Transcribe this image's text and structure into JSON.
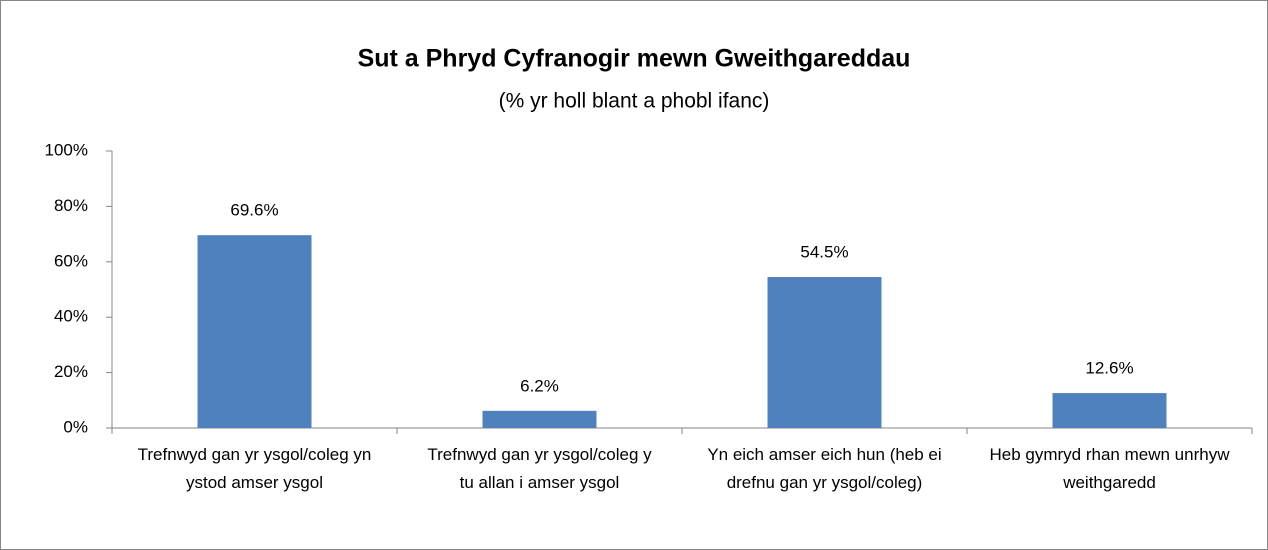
{
  "chart_data": {
    "type": "bar",
    "title": "Sut a Phryd Cyfranogir mewn Gweithgareddau",
    "subtitle": "(% yr holl blant a phobl ifanc)",
    "categories": [
      "Trefnwyd gan yr ysgol/coleg yn ystod amser ysgol",
      "Trefnwyd gan yr ysgol/coleg y tu allan i amser ysgol",
      "Yn eich amser eich hun (heb ei drefnu gan yr ysgol/coleg)",
      "Heb gymryd rhan mewn unrhyw weithgaredd"
    ],
    "values": [
      69.6,
      6.2,
      54.5,
      12.6
    ],
    "value_labels": [
      "69.6%",
      "6.2%",
      "54.5%",
      "12.6%"
    ],
    "color": "#4f81bd",
    "ylim": [
      0,
      100
    ],
    "yticks": [
      {
        "value": 0,
        "label": "0%"
      },
      {
        "value": 20,
        "label": "20%"
      },
      {
        "value": 40,
        "label": "40%"
      },
      {
        "value": 60,
        "label": "60%"
      },
      {
        "value": 80,
        "label": "80%"
      },
      {
        "value": 100,
        "label": "100%"
      }
    ],
    "grid": false
  }
}
